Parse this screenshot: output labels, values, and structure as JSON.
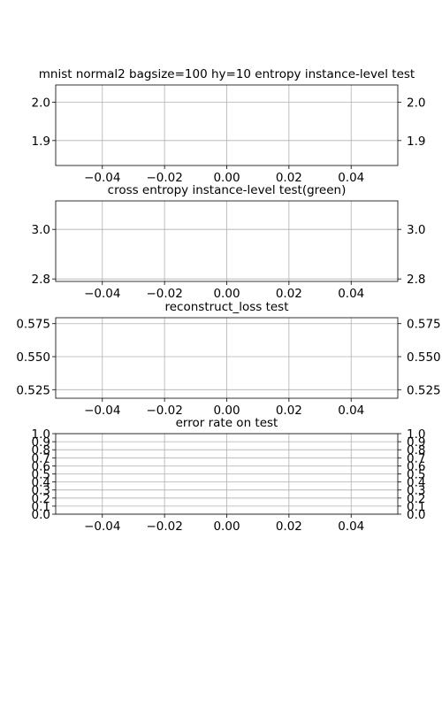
{
  "chart_data": [
    {
      "type": "line",
      "title": "mnist normal2 bagsize=100 hy=10 entropy instance-level test",
      "xlim": [
        -0.055,
        0.055
      ],
      "ylim": [
        1.835,
        2.045
      ],
      "x_ticks": [
        -0.04,
        -0.02,
        0.0,
        0.02,
        0.04
      ],
      "x_tick_labels": [
        "−0.04",
        "−0.02",
        "0.00",
        "0.02",
        "0.04"
      ],
      "y_ticks": [
        1.9,
        2.0
      ],
      "y_tick_labels": [
        "1.9",
        "2.0"
      ],
      "y_labels_both_sides": true,
      "grid": true,
      "series": []
    },
    {
      "type": "line",
      "title": "cross entropy instance-level test(green)",
      "xlim": [
        -0.055,
        0.055
      ],
      "ylim": [
        2.79,
        3.115
      ],
      "x_ticks": [
        -0.04,
        -0.02,
        0.0,
        0.02,
        0.04
      ],
      "x_tick_labels": [
        "−0.04",
        "−0.02",
        "0.00",
        "0.02",
        "0.04"
      ],
      "y_ticks": [
        2.8,
        3.0
      ],
      "y_tick_labels": [
        "2.8",
        "3.0"
      ],
      "y_labels_both_sides": true,
      "grid": true,
      "series": []
    },
    {
      "type": "line",
      "title": "reconstruct_loss test",
      "xlim": [
        -0.055,
        0.055
      ],
      "ylim": [
        0.5185,
        0.5795
      ],
      "x_ticks": [
        -0.04,
        -0.02,
        0.0,
        0.02,
        0.04
      ],
      "x_tick_labels": [
        "−0.04",
        "−0.02",
        "0.00",
        "0.02",
        "0.04"
      ],
      "y_ticks": [
        0.525,
        0.55,
        0.575
      ],
      "y_tick_labels": [
        "0.525",
        "0.550",
        "0.575"
      ],
      "y_labels_both_sides": true,
      "grid": true,
      "series": []
    },
    {
      "type": "line",
      "title": "error rate on test",
      "xlim": [
        -0.055,
        0.055
      ],
      "ylim": [
        0.0,
        1.0
      ],
      "x_ticks": [
        -0.04,
        -0.02,
        0.0,
        0.02,
        0.04
      ],
      "x_tick_labels": [
        "−0.04",
        "−0.02",
        "0.00",
        "0.02",
        "0.04"
      ],
      "y_ticks": [
        0.0,
        0.1,
        0.2,
        0.3,
        0.4,
        0.5,
        0.6,
        0.7,
        0.8,
        0.9,
        1.0
      ],
      "y_tick_labels": [
        "0.0",
        "0.1",
        "0.2",
        "0.3",
        "0.4",
        "0.5",
        "0.6",
        "0.7",
        "0.8",
        "0.9",
        "1.0"
      ],
      "y_labels_both_sides": true,
      "grid": true,
      "series": []
    }
  ]
}
